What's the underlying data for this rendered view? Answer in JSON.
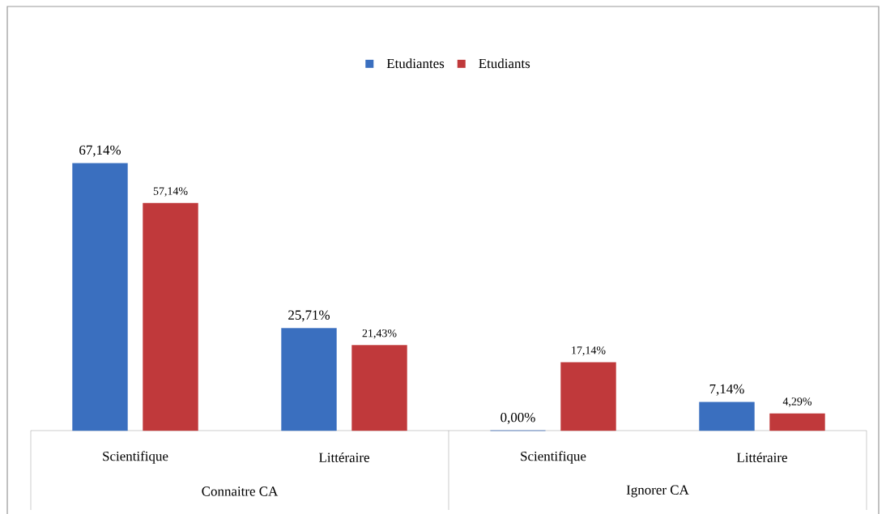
{
  "chart_data": {
    "type": "bar",
    "categories": [
      "Scientifique",
      "Littéraire",
      "Scientifique",
      "Littéraire"
    ],
    "series": [
      {
        "name": "Etudiantes",
        "color": "#3a6fbf",
        "values": [
          67.14,
          25.71,
          0,
          7.14
        ],
        "value_labels": [
          "67,14%",
          "25,71%",
          "0,00%",
          "7,14%"
        ]
      },
      {
        "name": "Etudiants",
        "color": "#c0393b",
        "values": [
          57.14,
          21.43,
          17.14,
          4.29
        ],
        "value_labels": [
          "57,14%",
          "21,43%",
          "17,14%",
          "4,29%"
        ]
      }
    ],
    "annotations": [
      "Connaitre CA",
      "Ignorer CA"
    ],
    "legend": "top"
  }
}
